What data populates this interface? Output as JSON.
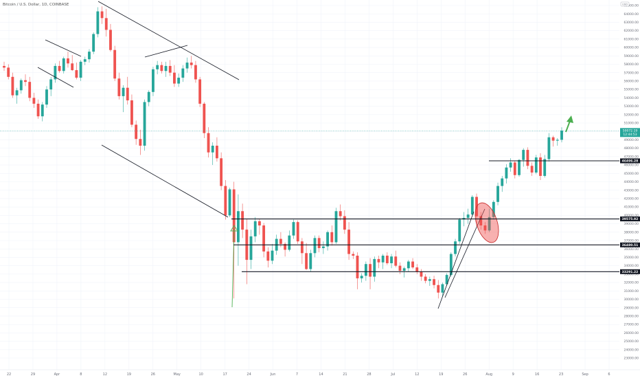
{
  "legend": "Bitcoin / U.S. Dollar, 1D, COINBASE",
  "top_right_label": "USD",
  "colors": {
    "up": "#26a69a",
    "down": "#ef5350",
    "grid": "#f0f3fa",
    "line": "#131722",
    "badge": "#131722",
    "arrow": "#4caf50",
    "ellipse_fill": "#ef5350",
    "current_price_bg": "#26a69a"
  },
  "y_axis": {
    "labels": [
      "65000.00",
      "64000.00",
      "63000.00",
      "62000.00",
      "61000.00",
      "60000.00",
      "59000.00",
      "58000.00",
      "57000.00",
      "56000.00",
      "55000.00",
      "54000.00",
      "53000.00",
      "52000.00",
      "51000.00",
      "50000.00",
      "49000.00",
      "48000.00",
      "47000.00",
      "46000.00",
      "45000.00",
      "44000.00",
      "43000.00",
      "42000.00",
      "41000.00",
      "40000.00",
      "39000.00",
      "38000.00",
      "37000.00",
      "36000.00",
      "35000.00",
      "34000.00",
      "33000.00",
      "32000.00",
      "31000.00",
      "30000.00",
      "29000.00",
      "28000.00",
      "27000.00",
      "26000.00",
      "25000.00",
      "24000.00",
      "23000.00"
    ]
  },
  "x_axis": {
    "labels": [
      "22",
      "29",
      "Apr",
      "8",
      "12",
      "19",
      "26",
      "May",
      "10",
      "17",
      "24",
      "Jun",
      "7",
      "14",
      "21",
      "28",
      "Jul",
      "12",
      "19",
      "26",
      "Aug",
      "9",
      "16",
      "23",
      "Sep",
      "6"
    ]
  },
  "levels": [
    {
      "value": 46496.28,
      "label": "46496.28"
    },
    {
      "value": 39575.92,
      "label": "39575.92"
    },
    {
      "value": 36480.51,
      "label": "36480.51"
    },
    {
      "value": 33291.22,
      "label": "33291.22"
    }
  ],
  "current_price": {
    "value": 50072.19,
    "label": "50072.19",
    "sub": "12:44:53"
  },
  "chart_data": {
    "type": "candlestick",
    "title": "Bitcoin / U.S. Dollar, 1D, COINBASE",
    "unit": "USD",
    "ylim": [
      22500,
      65500
    ],
    "grid": true,
    "candles_ohlc": [
      [
        57800,
        58300,
        57200,
        57600
      ],
      [
        57600,
        58000,
        56200,
        56500
      ],
      [
        56500,
        57000,
        54000,
        54300
      ],
      [
        54300,
        55200,
        53300,
        54900
      ],
      [
        54900,
        56300,
        54500,
        56100
      ],
      [
        56100,
        56800,
        55400,
        55900
      ],
      [
        55900,
        56500,
        53600,
        54000
      ],
      [
        54000,
        54600,
        52800,
        53300
      ],
      [
        53300,
        53800,
        51500,
        51800
      ],
      [
        51800,
        53500,
        51200,
        53200
      ],
      [
        53200,
        55400,
        52800,
        55000
      ],
      [
        55000,
        56500,
        54200,
        56200
      ],
      [
        56200,
        58100,
        55800,
        57800
      ],
      [
        57800,
        58400,
        57000,
        57200
      ],
      [
        57200,
        58900,
        56900,
        58700
      ],
      [
        58700,
        59500,
        57600,
        58100
      ],
      [
        58100,
        59100,
        57200,
        57300
      ],
      [
        57300,
        58200,
        56200,
        56400
      ],
      [
        56400,
        58500,
        56000,
        58300
      ],
      [
        58300,
        58900,
        57900,
        58600
      ],
      [
        58600,
        59800,
        58200,
        59500
      ],
      [
        59500,
        61800,
        59200,
        61600
      ],
      [
        61600,
        64800,
        61200,
        64300
      ],
      [
        64300,
        64900,
        62800,
        63500
      ],
      [
        63500,
        64600,
        61300,
        62100
      ],
      [
        62100,
        62800,
        59500,
        59700
      ],
      [
        59700,
        60200,
        56000,
        56300
      ],
      [
        56300,
        57000,
        53800,
        54200
      ],
      [
        54200,
        55500,
        52300,
        55200
      ],
      [
        55200,
        56500,
        53200,
        53700
      ],
      [
        53700,
        54400,
        50500,
        50800
      ],
      [
        50800,
        51300,
        48400,
        49100
      ],
      [
        49100,
        50200,
        47200,
        48300
      ],
      [
        48300,
        53800,
        47700,
        53500
      ],
      [
        53500,
        54900,
        53000,
        54700
      ],
      [
        54700,
        57700,
        54200,
        57400
      ],
      [
        57400,
        58400,
        56800,
        57900
      ],
      [
        57900,
        58300,
        56900,
        57200
      ],
      [
        57200,
        58300,
        56500,
        57800
      ],
      [
        57800,
        58500,
        56600,
        57000
      ],
      [
        57000,
        57900,
        55300,
        55700
      ],
      [
        55700,
        56900,
        55300,
        56400
      ],
      [
        56400,
        57900,
        55900,
        57500
      ],
      [
        57500,
        58800,
        57000,
        58200
      ],
      [
        58200,
        59000,
        57500,
        57900
      ],
      [
        57900,
        58400,
        55800,
        56200
      ],
      [
        56200,
        56500,
        52900,
        53300
      ],
      [
        53300,
        53500,
        49200,
        49800
      ],
      [
        49800,
        50500,
        46900,
        47500
      ],
      [
        47500,
        48700,
        46000,
        48300
      ],
      [
        48300,
        49300,
        46400,
        46800
      ],
      [
        46800,
        47500,
        43000,
        43500
      ],
      [
        43500,
        44200,
        39500,
        40000
      ],
      [
        40000,
        43300,
        39800,
        43100
      ],
      [
        43100,
        44000,
        30100,
        36800
      ],
      [
        36800,
        42500,
        34000,
        40500
      ],
      [
        40500,
        41400,
        37300,
        38300
      ],
      [
        38300,
        39600,
        31800,
        34700
      ],
      [
        34700,
        38300,
        33600,
        37500
      ],
      [
        37500,
        39800,
        36800,
        39300
      ],
      [
        39300,
        39600,
        37700,
        38800
      ],
      [
        38800,
        39100,
        35000,
        35700
      ],
      [
        35700,
        36200,
        33800,
        34600
      ],
      [
        34600,
        36600,
        34200,
        35800
      ],
      [
        35800,
        37700,
        35300,
        37200
      ],
      [
        37200,
        38000,
        36200,
        36600
      ],
      [
        36600,
        36800,
        35100,
        35900
      ],
      [
        35900,
        38200,
        35700,
        37600
      ],
      [
        37600,
        39500,
        37200,
        39200
      ],
      [
        39200,
        39400,
        36600,
        36900
      ],
      [
        36900,
        37300,
        34200,
        35500
      ],
      [
        35500,
        36700,
        33500,
        33600
      ],
      [
        33600,
        35900,
        33300,
        35500
      ],
      [
        35500,
        37600,
        35000,
        37300
      ],
      [
        37300,
        37600,
        35600,
        36100
      ],
      [
        36100,
        36900,
        35400,
        36300
      ],
      [
        36300,
        38200,
        35800,
        38000
      ],
      [
        38000,
        38800,
        36400,
        36800
      ],
      [
        36800,
        40900,
        36600,
        40500
      ],
      [
        40500,
        41300,
        39400,
        39900
      ],
      [
        39900,
        40600,
        37800,
        38300
      ],
      [
        38300,
        39200,
        34700,
        35400
      ],
      [
        35400,
        35700,
        34800,
        35200
      ],
      [
        35200,
        35600,
        31200,
        32500
      ],
      [
        32500,
        33100,
        32000,
        32800
      ],
      [
        32800,
        34500,
        32200,
        34200
      ],
      [
        34200,
        34900,
        31200,
        32700
      ],
      [
        32700,
        35100,
        32100,
        34800
      ],
      [
        34800,
        35200,
        33700,
        34400
      ],
      [
        34400,
        35400,
        33600,
        35200
      ],
      [
        35200,
        35600,
        34100,
        34300
      ],
      [
        34300,
        35400,
        33700,
        35100
      ],
      [
        35100,
        35800,
        33800,
        34000
      ],
      [
        34000,
        34400,
        33000,
        33400
      ],
      [
        33400,
        33900,
        32600,
        33700
      ],
      [
        33700,
        34700,
        33300,
        34500
      ],
      [
        34500,
        34900,
        33600,
        33800
      ],
      [
        33800,
        34200,
        33000,
        33300
      ],
      [
        33300,
        33600,
        32200,
        32700
      ],
      [
        32700,
        33000,
        31900,
        32200
      ],
      [
        32200,
        32700,
        31600,
        32400
      ],
      [
        32400,
        32800,
        31300,
        31700
      ],
      [
        31700,
        32300,
        30100,
        30800
      ],
      [
        30800,
        32000,
        30300,
        31800
      ],
      [
        31800,
        33100,
        31600,
        32900
      ],
      [
        32900,
        35600,
        32700,
        35400
      ],
      [
        35400,
        37200,
        35100,
        36900
      ],
      [
        36900,
        39700,
        36600,
        39500
      ],
      [
        39500,
        40400,
        38700,
        39700
      ],
      [
        39700,
        40800,
        39000,
        40100
      ],
      [
        40100,
        42400,
        39900,
        42200
      ],
      [
        42200,
        42600,
        38700,
        39900
      ],
      [
        39900,
        40400,
        38300,
        38800
      ],
      [
        38800,
        39200,
        37800,
        38200
      ],
      [
        38200,
        40800,
        38000,
        39800
      ],
      [
        39800,
        41800,
        39500,
        41600
      ],
      [
        41600,
        43900,
        41200,
        43500
      ],
      [
        43500,
        44700,
        42800,
        44400
      ],
      [
        44400,
        46100,
        43800,
        45700
      ],
      [
        45700,
        46800,
        45200,
        46300
      ],
      [
        46300,
        46500,
        44400,
        44800
      ],
      [
        44800,
        46700,
        44600,
        46600
      ],
      [
        46600,
        48000,
        45800,
        47800
      ],
      [
        47800,
        48100,
        45500,
        45900
      ],
      [
        45900,
        46300,
        44700,
        45100
      ],
      [
        45100,
        47200,
        44900,
        46900
      ],
      [
        46900,
        47400,
        44200,
        44700
      ],
      [
        44700,
        47200,
        44500,
        46700
      ],
      [
        46700,
        49800,
        46400,
        49300
      ],
      [
        49300,
        49500,
        48200,
        48900
      ],
      [
        48900,
        49200,
        48300,
        49000
      ],
      [
        49000,
        50500,
        48700,
        50100
      ]
    ]
  }
}
